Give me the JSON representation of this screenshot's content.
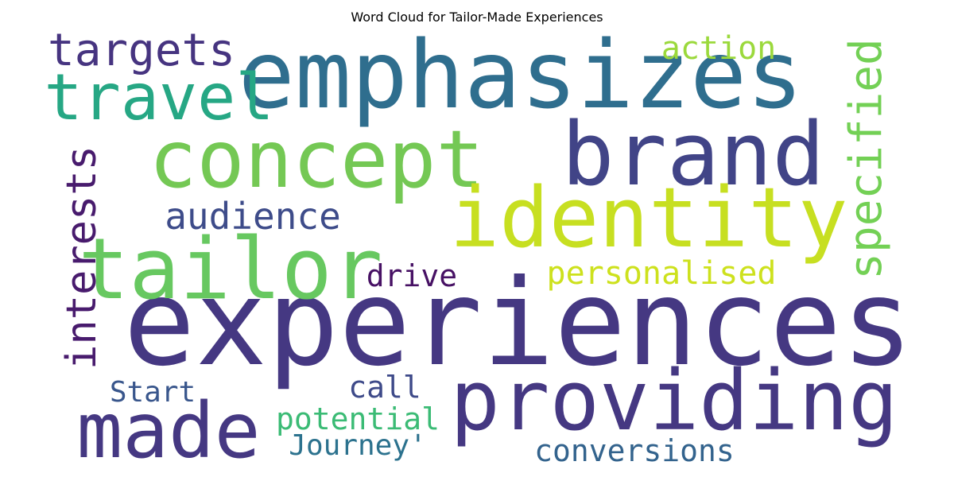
{
  "title": "Word Cloud for Tailor-Made Experiences",
  "chart_data": {
    "type": "wordcloud",
    "title": "Word Cloud for Tailor-Made Experiences",
    "words": [
      {
        "text": "experiences",
        "color": "#453882"
      },
      {
        "text": "emphasizes",
        "color": "#2f6e8e"
      },
      {
        "text": "brand",
        "color": "#414487"
      },
      {
        "text": "concept",
        "color": "#74c854"
      },
      {
        "text": "identity",
        "color": "#c7df21"
      },
      {
        "text": "tailor",
        "color": "#67c860"
      },
      {
        "text": "providing",
        "color": "#453882"
      },
      {
        "text": "made",
        "color": "#453882"
      },
      {
        "text": "travel",
        "color": "#26a784"
      },
      {
        "text": "targets",
        "color": "#463480"
      },
      {
        "text": "action",
        "color": "#9bd93c"
      },
      {
        "text": "specified",
        "color": "#73d055"
      },
      {
        "text": "interests",
        "color": "#481b6d"
      },
      {
        "text": "audience",
        "color": "#3e4c8a"
      },
      {
        "text": "personalised",
        "color": "#cde11d"
      },
      {
        "text": "drive",
        "color": "#471164"
      },
      {
        "text": "Start",
        "color": "#39568c"
      },
      {
        "text": "call",
        "color": "#3e4a89"
      },
      {
        "text": "potential",
        "color": "#3bbb75"
      },
      {
        "text": "Journey'",
        "color": "#2c728e"
      },
      {
        "text": "conversions",
        "color": "#33638d"
      }
    ]
  }
}
